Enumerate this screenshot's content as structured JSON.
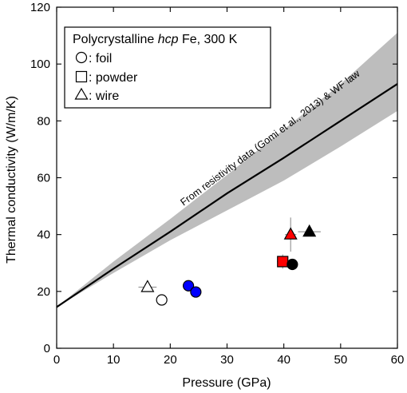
{
  "chart_data": {
    "type": "scatter",
    "xlabel": "Pressure (GPa)",
    "ylabel": "Thermal conductivity (W/m/K)",
    "xlim": [
      0,
      60
    ],
    "ylim": [
      0,
      120
    ],
    "x_ticks": [
      0,
      10,
      20,
      30,
      40,
      50,
      60
    ],
    "y_ticks": [
      0,
      20,
      40,
      60,
      80,
      100,
      120
    ],
    "legend": {
      "placement": "top-left",
      "title_prefix": "Polycrystalline ",
      "title_italic": "hcp",
      "title_suffix": " Fe, 300 K",
      "entries": [
        {
          "marker": "circle",
          "label": ": foil"
        },
        {
          "marker": "square",
          "label": ": powder"
        },
        {
          "marker": "triangle",
          "label": ": wire"
        }
      ]
    },
    "annotation": "From resistivity data (Gomi et al., 2013) & WF law",
    "band": {
      "color": "#bdbdbd",
      "x": [
        0,
        10,
        20,
        30,
        40,
        50,
        60
      ],
      "center": [
        14.5,
        28,
        41,
        54.5,
        67,
        80,
        93
      ],
      "lower": [
        14.5,
        26.5,
        38,
        48.5,
        59,
        71,
        83.5
      ],
      "upper": [
        14.5,
        30.5,
        45.5,
        61,
        77,
        93,
        111
      ]
    },
    "points": [
      {
        "x": 16,
        "y": 21.5,
        "marker": "triangle",
        "fill": "#ffffff",
        "xerr": 1.6,
        "yerr": 1.5
      },
      {
        "x": 18.5,
        "y": 17,
        "marker": "circle",
        "fill": "#ffffff",
        "xerr": 0,
        "yerr": 0
      },
      {
        "x": 23.2,
        "y": 22,
        "marker": "circle",
        "fill": "#0000ff",
        "xerr": 0,
        "yerr": 0
      },
      {
        "x": 24.5,
        "y": 19.8,
        "marker": "circle",
        "fill": "#0000ff",
        "xerr": 0,
        "yerr": 0
      },
      {
        "x": 39.8,
        "y": 30.5,
        "marker": "square",
        "fill": "#ff0000",
        "xerr": 1.0,
        "yerr": 2.5
      },
      {
        "x": 41.5,
        "y": 29.5,
        "marker": "circle",
        "fill": "#000000",
        "xerr": 1.0,
        "yerr": 1.0
      },
      {
        "x": 41.2,
        "y": 40,
        "marker": "triangle",
        "fill": "#ff0000",
        "xerr": 1.0,
        "yerr": 6.0
      },
      {
        "x": 44.5,
        "y": 41,
        "marker": "triangle",
        "fill": "#000000",
        "xerr": 2.0,
        "yerr": 1.0
      }
    ]
  }
}
